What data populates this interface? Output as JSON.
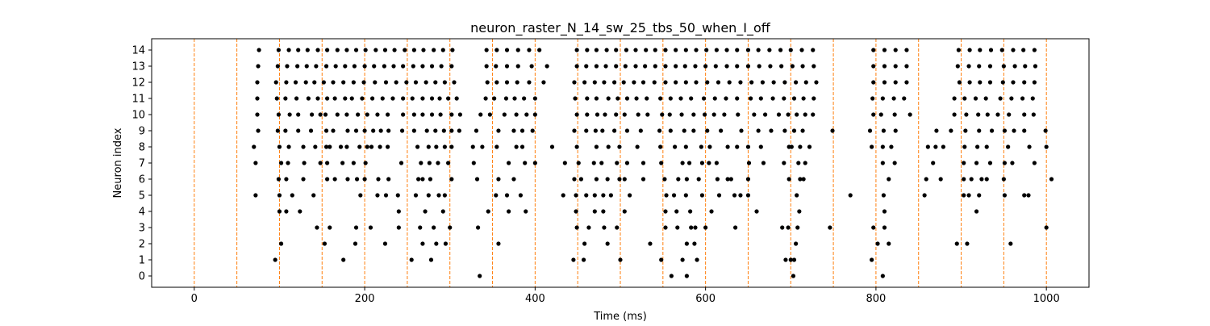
{
  "chart_data": {
    "type": "scatter",
    "title": "neuron_raster_N_14_sw_25_tbs_50_when_I_off",
    "xlabel": "Time (ms)",
    "ylabel": "Neuron index",
    "xlim": [
      -50,
      1050
    ],
    "ylim": [
      -0.7,
      14.7
    ],
    "x_ticks": [
      0,
      200,
      400,
      600,
      800,
      1000
    ],
    "y_ticks": [
      0,
      1,
      2,
      3,
      4,
      5,
      6,
      7,
      8,
      9,
      10,
      11,
      12,
      13,
      14
    ],
    "grid": false,
    "reference_lines": {
      "orientation": "vertical",
      "style": "dashed",
      "color": "#ff7f0e",
      "x": [
        0,
        50,
        100,
        150,
        200,
        250,
        300,
        350,
        400,
        450,
        500,
        550,
        600,
        650,
        700,
        750,
        800,
        850,
        900,
        950,
        1000
      ]
    },
    "marker_color": "#000000",
    "spikes": [
      {
        "neuron": 0,
        "times": [
          335,
          560,
          578,
          703,
          808
        ]
      },
      {
        "neuron": 1,
        "times": [
          95,
          175,
          255,
          278,
          445,
          457,
          500,
          548,
          573,
          590,
          694,
          700,
          704,
          795
        ]
      },
      {
        "neuron": 2,
        "times": [
          102,
          153,
          189,
          224,
          268,
          284,
          295,
          357,
          458,
          485,
          535,
          578,
          587,
          706,
          802,
          815,
          895,
          907,
          958
        ]
      },
      {
        "neuron": 3,
        "times": [
          144,
          159,
          190,
          207,
          240,
          265,
          281,
          300,
          333,
          449,
          463,
          481,
          496,
          553,
          567,
          583,
          588,
          600,
          635,
          690,
          697,
          708,
          746,
          797,
          810,
          1000
        ]
      },
      {
        "neuron": 4,
        "times": [
          100,
          108,
          124,
          240,
          271,
          292,
          345,
          369,
          389,
          448,
          470,
          480,
          505,
          553,
          566,
          582,
          607,
          660,
          710,
          810,
          918
        ]
      },
      {
        "neuron": 5,
        "times": [
          72,
          100,
          115,
          140,
          195,
          215,
          225,
          239,
          260,
          275,
          287,
          294,
          354,
          367,
          383,
          433,
          448,
          460,
          470,
          480,
          489,
          511,
          554,
          563,
          577,
          596,
          616,
          634,
          641,
          650,
          707,
          770,
          809,
          857,
          903,
          909,
          921,
          951,
          974,
          979
        ]
      },
      {
        "neuron": 6,
        "times": [
          99,
          108,
          128,
          156,
          165,
          180,
          191,
          200,
          216,
          228,
          263,
          268,
          277,
          302,
          332,
          357,
          375,
          446,
          454,
          472,
          485,
          499,
          505,
          527,
          552,
          568,
          578,
          592,
          614,
          626,
          630,
          650,
          698,
          711,
          715,
          815,
          859,
          876,
          903,
          912,
          924,
          930,
          950,
          1006
        ]
      },
      {
        "neuron": 7,
        "times": [
          72,
          102,
          110,
          129,
          148,
          156,
          174,
          187,
          201,
          243,
          266,
          276,
          286,
          298,
          328,
          369,
          388,
          400,
          435,
          451,
          469,
          478,
          496,
          508,
          527,
          548,
          573,
          581,
          596,
          604,
          613,
          651,
          668,
          692,
          709,
          717,
          808,
          822,
          867,
          903,
          918,
          934,
          951,
          960,
          986
        ]
      },
      {
        "neuron": 8,
        "times": [
          70,
          100,
          111,
          128,
          142,
          155,
          159,
          172,
          179,
          194,
          203,
          208,
          218,
          227,
          262,
          275,
          284,
          294,
          302,
          327,
          338,
          355,
          378,
          385,
          420,
          449,
          472,
          486,
          499,
          520,
          547,
          564,
          577,
          595,
          605,
          626,
          637,
          650,
          665,
          698,
          701,
          711,
          722,
          795,
          808,
          818,
          861,
          870,
          879,
          904,
          919,
          930,
          955,
          980,
          1000
        ]
      },
      {
        "neuron": 9,
        "times": [
          75,
          98,
          107,
          122,
          137,
          155,
          163,
          180,
          190,
          200,
          210,
          219,
          228,
          244,
          258,
          273,
          283,
          293,
          302,
          311,
          331,
          357,
          375,
          385,
          397,
          446,
          460,
          471,
          479,
          493,
          508,
          524,
          546,
          559,
          575,
          586,
          602,
          618,
          642,
          662,
          677,
          693,
          704,
          714,
          749,
          793,
          809,
          823,
          871,
          888,
          905,
          921,
          936,
          951,
          962,
          974,
          999
        ]
      },
      {
        "neuron": 10,
        "times": [
          74,
          99,
          112,
          122,
          138,
          148,
          154,
          168,
          179,
          192,
          203,
          215,
          227,
          245,
          258,
          268,
          279,
          289,
          302,
          312,
          336,
          347,
          364,
          378,
          390,
          400,
          449,
          461,
          473,
          482,
          495,
          505,
          521,
          532,
          549,
          558,
          572,
          586,
          599,
          610,
          622,
          638,
          657,
          670,
          686,
          697,
          707,
          717,
          726,
          797,
          806,
          822,
          840,
          892,
          906,
          920,
          931,
          943,
          956,
          974,
          985
        ]
      },
      {
        "neuron": 11,
        "times": [
          74,
          97,
          107,
          120,
          134,
          145,
          156,
          165,
          177,
          185,
          197,
          209,
          221,
          233,
          245,
          256,
          268,
          279,
          288,
          298,
          308,
          342,
          352,
          366,
          376,
          387,
          400,
          447,
          461,
          472,
          486,
          497,
          508,
          519,
          531,
          547,
          559,
          571,
          583,
          598,
          611,
          624,
          637,
          653,
          665,
          679,
          692,
          704,
          715,
          727,
          796,
          808,
          821,
          833,
          892,
          904,
          917,
          929,
          946,
          959,
          972,
          984
        ]
      },
      {
        "neuron": 12,
        "times": [
          74,
          96,
          108,
          119,
          131,
          141,
          152,
          163,
          175,
          187,
          199,
          212,
          225,
          237,
          249,
          260,
          272,
          283,
          294,
          305,
          344,
          355,
          367,
          379,
          393,
          410,
          446,
          458,
          470,
          481,
          493,
          504,
          516,
          527,
          540,
          553,
          565,
          577,
          589,
          602,
          615,
          628,
          641,
          654,
          667,
          680,
          693,
          706,
          718,
          730,
          797,
          810,
          823,
          836,
          898,
          910,
          922,
          934,
          949,
          961,
          974,
          986
        ]
      },
      {
        "neuron": 13,
        "times": [
          75,
          98,
          109,
          121,
          132,
          143,
          155,
          166,
          177,
          188,
          200,
          211,
          223,
          234,
          245,
          257,
          268,
          279,
          290,
          302,
          343,
          354,
          367,
          380,
          396,
          414,
          449,
          460,
          472,
          483,
          495,
          506,
          518,
          529,
          541,
          553,
          565,
          576,
          588,
          600,
          612,
          625,
          637,
          650,
          663,
          676,
          689,
          702,
          714,
          727,
          797,
          810,
          823,
          836,
          896,
          909,
          921,
          934,
          950,
          963,
          975,
          987
        ]
      },
      {
        "neuron": 14,
        "times": [
          76,
          99,
          111,
          122,
          133,
          145,
          156,
          168,
          179,
          190,
          201,
          213,
          224,
          235,
          247,
          258,
          269,
          281,
          292,
          303,
          343,
          355,
          367,
          380,
          393,
          405,
          449,
          461,
          472,
          484,
          495,
          507,
          518,
          530,
          541,
          553,
          565,
          577,
          589,
          601,
          613,
          625,
          637,
          650,
          662,
          675,
          688,
          700,
          713,
          726,
          797,
          810,
          823,
          836,
          897,
          910,
          922,
          935,
          948,
          961,
          973,
          986
        ]
      }
    ]
  }
}
